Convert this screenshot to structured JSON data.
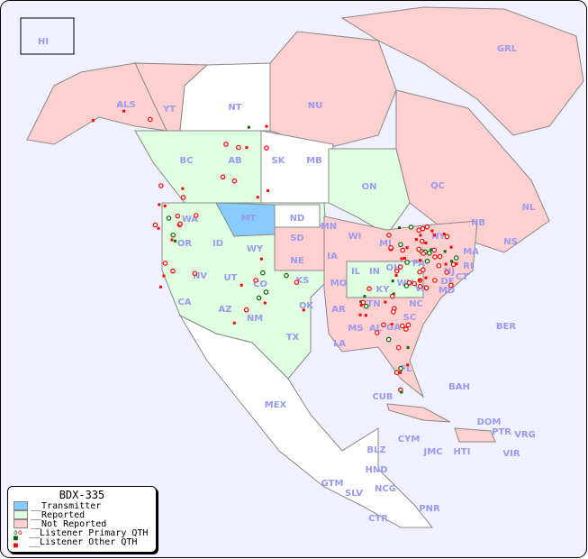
{
  "legend": {
    "title": "BDX-335",
    "items": [
      {
        "label": "__Transmitter",
        "color": "#88ccff"
      },
      {
        "label": "__Reported",
        "color": "#e0ffe0"
      },
      {
        "label": "__Not Reported",
        "color": "#ffd0d0"
      },
      {
        "label": "__Listener Primary QTH",
        "color": "#ff0000"
      },
      {
        "label": "__Listener Other QTH",
        "color": "#ff0000"
      }
    ]
  },
  "colors": {
    "ocean": "#f0f0ff",
    "land_unlisted": "#ffffff",
    "border": "#888888",
    "label": "#9a9af0",
    "marker": "#ff0000",
    "marker_other": "#006600"
  },
  "regions": [
    {
      "code": "HI",
      "status": "not_reported"
    },
    {
      "code": "ALS",
      "status": "not_reported"
    },
    {
      "code": "YT",
      "status": "not_reported"
    },
    {
      "code": "NT",
      "status": "none"
    },
    {
      "code": "NU",
      "status": "not_reported"
    },
    {
      "code": "GRL",
      "status": "not_reported"
    },
    {
      "code": "BC",
      "status": "reported"
    },
    {
      "code": "AB",
      "status": "reported"
    },
    {
      "code": "SK",
      "status": "none"
    },
    {
      "code": "MB",
      "status": "none"
    },
    {
      "code": "ON",
      "status": "reported"
    },
    {
      "code": "QC",
      "status": "not_reported"
    },
    {
      "code": "NL",
      "status": "not_reported"
    },
    {
      "code": "NB",
      "status": "not_reported"
    },
    {
      "code": "NS",
      "status": "not_reported"
    },
    {
      "code": "WA",
      "status": "reported"
    },
    {
      "code": "OR",
      "status": "reported"
    },
    {
      "code": "ID",
      "status": "reported"
    },
    {
      "code": "MT",
      "status": "transmitter"
    },
    {
      "code": "WY",
      "status": "not_reported"
    },
    {
      "code": "ND",
      "status": "none"
    },
    {
      "code": "SD",
      "status": "not_reported"
    },
    {
      "code": "NE",
      "status": "not_reported"
    },
    {
      "code": "MN",
      "status": "reported"
    },
    {
      "code": "WI",
      "status": "not_reported"
    },
    {
      "code": "IA",
      "status": "not_reported"
    },
    {
      "code": "IL",
      "status": "reported"
    },
    {
      "code": "MI",
      "status": "not_reported"
    },
    {
      "code": "IN",
      "status": "reported"
    },
    {
      "code": "OH",
      "status": "reported"
    },
    {
      "code": "PA",
      "status": "not_reported"
    },
    {
      "code": "NY",
      "status": "not_reported"
    },
    {
      "code": "MA",
      "status": "not_reported"
    },
    {
      "code": "CT",
      "status": "not_reported"
    },
    {
      "code": "RI",
      "status": "not_reported"
    },
    {
      "code": "NJ",
      "status": "not_reported"
    },
    {
      "code": "DE",
      "status": "not_reported"
    },
    {
      "code": "MD",
      "status": "not_reported"
    },
    {
      "code": "VA",
      "status": "reported"
    },
    {
      "code": "WV",
      "status": "reported"
    },
    {
      "code": "KY",
      "status": "reported"
    },
    {
      "code": "TN",
      "status": "not_reported"
    },
    {
      "code": "NC",
      "status": "not_reported"
    },
    {
      "code": "SC",
      "status": "not_reported"
    },
    {
      "code": "GA",
      "status": "not_reported"
    },
    {
      "code": "AL",
      "status": "not_reported"
    },
    {
      "code": "MS",
      "status": "not_reported"
    },
    {
      "code": "LA",
      "status": "not_reported"
    },
    {
      "code": "AR",
      "status": "not_reported"
    },
    {
      "code": "MO",
      "status": "reported"
    },
    {
      "code": "KS",
      "status": "reported"
    },
    {
      "code": "OK",
      "status": "not_reported"
    },
    {
      "code": "TX",
      "status": "reported"
    },
    {
      "code": "NM",
      "status": "reported"
    },
    {
      "code": "AZ",
      "status": "reported"
    },
    {
      "code": "CO",
      "status": "reported"
    },
    {
      "code": "UT",
      "status": "reported"
    },
    {
      "code": "NV",
      "status": "reported"
    },
    {
      "code": "CA",
      "status": "reported"
    },
    {
      "code": "FL",
      "status": "not_reported"
    },
    {
      "code": "MEX",
      "status": "none"
    },
    {
      "code": "CUB",
      "status": "not_reported"
    },
    {
      "code": "BAH",
      "status": "none"
    },
    {
      "code": "DOM",
      "status": "not_reported"
    },
    {
      "code": "PTR",
      "status": "not_reported"
    },
    {
      "code": "VRG",
      "status": "none"
    },
    {
      "code": "HTI",
      "status": "none"
    },
    {
      "code": "JMC",
      "status": "none"
    },
    {
      "code": "CYM",
      "status": "not_reported"
    },
    {
      "code": "VIR",
      "status": "none"
    },
    {
      "code": "BER",
      "status": "none"
    },
    {
      "code": "BLZ",
      "status": "none"
    },
    {
      "code": "GTM",
      "status": "none"
    },
    {
      "code": "HND",
      "status": "none"
    },
    {
      "code": "SLV",
      "status": "none"
    },
    {
      "code": "NCG",
      "status": "none"
    },
    {
      "code": "CTR",
      "status": "none"
    },
    {
      "code": "PNR",
      "status": "none"
    }
  ]
}
